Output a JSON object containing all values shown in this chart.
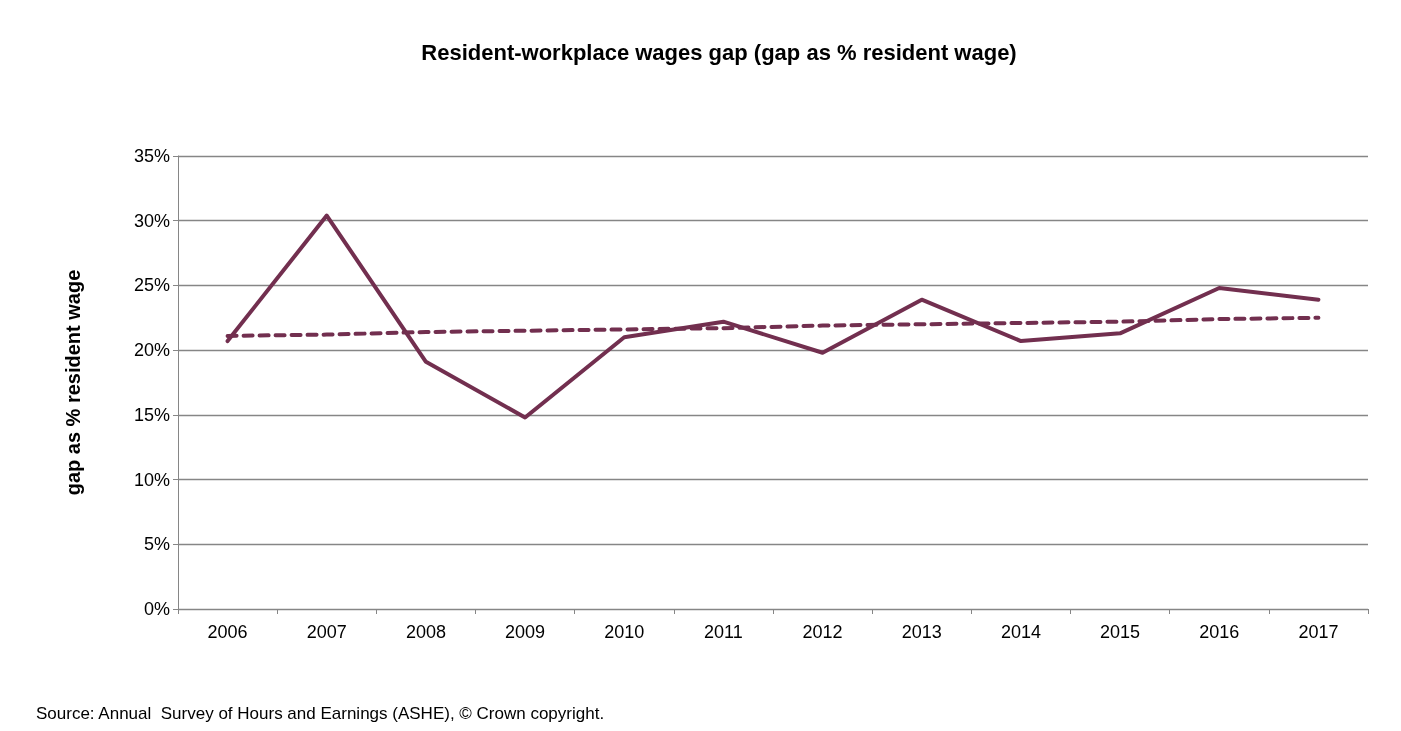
{
  "chart_data": {
    "type": "line",
    "title": "Resident-workplace wages gap (gap as % resident wage)",
    "ylabel": "gap as % resident wage",
    "categories": [
      "2006",
      "2007",
      "2008",
      "2009",
      "2010",
      "2011",
      "2012",
      "2013",
      "2014",
      "2015",
      "2016",
      "2017"
    ],
    "series": [
      {
        "color": "#722f4f",
        "values": [
          20.7,
          30.4,
          19.1,
          14.8,
          21.0,
          22.2,
          19.8,
          23.9,
          20.7,
          21.3,
          24.8,
          23.9
        ]
      },
      {
        "type": "line",
        "color": "#722f4f",
        "line_style": "dashed",
        "values": [
          21.1,
          21.2,
          21.4,
          21.5,
          21.6,
          21.7,
          21.9,
          22.0,
          22.1,
          22.2,
          22.4,
          22.5
        ]
      }
    ],
    "ylim": [
      0,
      35
    ],
    "yticks": [
      {
        "value": 0,
        "label": "0%"
      },
      {
        "value": 5,
        "label": "5%"
      },
      {
        "value": 10,
        "label": "10%"
      },
      {
        "value": 15,
        "label": "15%"
      },
      {
        "value": 20,
        "label": "20%"
      },
      {
        "value": 25,
        "label": "25%"
      },
      {
        "value": 30,
        "label": "30%"
      },
      {
        "value": 35,
        "label": "35%"
      }
    ],
    "grid": "y",
    "marker": "none",
    "line_style": "solid",
    "annotations": [
      "Source: Annual  Survey of Hours and Earnings (ASHE), © Crown copyright."
    ]
  }
}
